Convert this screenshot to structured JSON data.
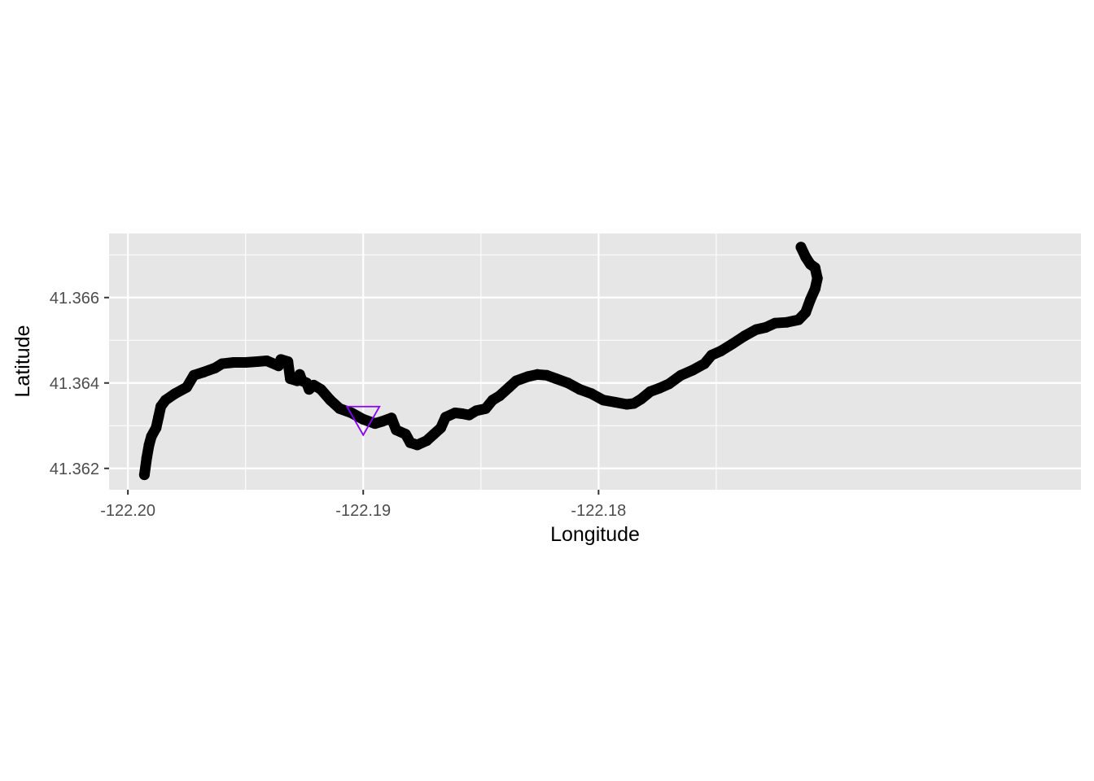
{
  "chart_data": {
    "type": "scatter",
    "title": "",
    "xlabel": "Longitude",
    "ylabel": "Latitude",
    "xlim": [
      -122.2008,
      -122.1595
    ],
    "ylim": [
      41.3615,
      41.3675
    ],
    "x_ticks": [
      -122.2,
      -122.19,
      -122.18
    ],
    "x_tick_labels": [
      "-122.20",
      "-122.19",
      "-122.18"
    ],
    "y_ticks": [
      41.362,
      41.364,
      41.366
    ],
    "y_tick_labels": [
      "41.362",
      "41.364",
      "41.366"
    ],
    "grid": true,
    "panel_background": "#e6e6e6",
    "series": [
      {
        "marker": "circle",
        "color": "#000000",
        "points": [
          [
            -122.1993,
            41.36185
          ],
          [
            -122.1992,
            41.36225
          ],
          [
            -122.1991,
            41.36255
          ],
          [
            -122.199,
            41.36275
          ],
          [
            -122.1988,
            41.36295
          ],
          [
            -122.1987,
            41.3632
          ],
          [
            -122.1986,
            41.36345
          ],
          [
            -122.1984,
            41.3636
          ],
          [
            -122.198,
            41.36375
          ],
          [
            -122.1975,
            41.3639
          ],
          [
            -122.1972,
            41.36418
          ],
          [
            -122.1968,
            41.36425
          ],
          [
            -122.1963,
            41.36435
          ],
          [
            -122.196,
            41.36445
          ],
          [
            -122.1955,
            41.36448
          ],
          [
            -122.195,
            41.36448
          ],
          [
            -122.1945,
            41.3645
          ],
          [
            -122.1941,
            41.36452
          ],
          [
            -122.1936,
            41.3644
          ],
          [
            -122.1935,
            41.36455
          ],
          [
            -122.1932,
            41.3645
          ],
          [
            -122.1931,
            41.3641
          ],
          [
            -122.1928,
            41.36405
          ],
          [
            -122.1927,
            41.3642
          ],
          [
            -122.1926,
            41.36405
          ],
          [
            -122.1924,
            41.364
          ],
          [
            -122.1923,
            41.36385
          ],
          [
            -122.1921,
            41.36395
          ],
          [
            -122.1918,
            41.36385
          ],
          [
            -122.1914,
            41.3636
          ],
          [
            -122.191,
            41.3634
          ],
          [
            -122.1905,
            41.3633
          ],
          [
            -122.19,
            41.36315
          ],
          [
            -122.1895,
            41.36305
          ],
          [
            -122.1892,
            41.3631
          ],
          [
            -122.1888,
            41.36318
          ],
          [
            -122.1886,
            41.3629
          ],
          [
            -122.1882,
            41.3628
          ],
          [
            -122.188,
            41.3626
          ],
          [
            -122.1877,
            41.36255
          ],
          [
            -122.1873,
            41.36265
          ],
          [
            -122.187,
            41.3628
          ],
          [
            -122.1867,
            41.36295
          ],
          [
            -122.1865,
            41.3632
          ],
          [
            -122.1861,
            41.3633
          ],
          [
            -122.1858,
            41.36328
          ],
          [
            -122.1855,
            41.36325
          ],
          [
            -122.1852,
            41.36335
          ],
          [
            -122.1848,
            41.3634
          ],
          [
            -122.1845,
            41.3636
          ],
          [
            -122.1842,
            41.3637
          ],
          [
            -122.1838,
            41.3639
          ],
          [
            -122.1835,
            41.36405
          ],
          [
            -122.183,
            41.36415
          ],
          [
            -122.1826,
            41.3642
          ],
          [
            -122.1822,
            41.36418
          ],
          [
            -122.1818,
            41.3641
          ],
          [
            -122.1813,
            41.364
          ],
          [
            -122.1808,
            41.36385
          ],
          [
            -122.1803,
            41.36375
          ],
          [
            -122.1798,
            41.3636
          ],
          [
            -122.1793,
            41.36355
          ],
          [
            -122.1788,
            41.3635
          ],
          [
            -122.1785,
            41.36352
          ],
          [
            -122.1782,
            41.36362
          ],
          [
            -122.1778,
            41.3638
          ],
          [
            -122.1774,
            41.36388
          ],
          [
            -122.177,
            41.36398
          ],
          [
            -122.1765,
            41.36418
          ],
          [
            -122.176,
            41.3643
          ],
          [
            -122.1755,
            41.36445
          ],
          [
            -122.1752,
            41.36465
          ],
          [
            -122.1748,
            41.36475
          ],
          [
            -122.1743,
            41.36492
          ],
          [
            -122.1738,
            41.3651
          ],
          [
            -122.1733,
            41.36525
          ],
          [
            -122.1729,
            41.3653
          ],
          [
            -122.1725,
            41.3654
          ],
          [
            -122.172,
            41.36542
          ],
          [
            -122.1715,
            41.36548
          ],
          [
            -122.1712,
            41.36565
          ],
          [
            -122.171,
            41.36595
          ],
          [
            -122.1708,
            41.3662
          ],
          [
            -122.1707,
            41.36645
          ],
          [
            -122.1708,
            41.3667
          ],
          [
            -122.171,
            41.36678
          ],
          [
            -122.1712,
            41.36695
          ],
          [
            -122.1714,
            41.36718
          ]
        ]
      }
    ],
    "annotations": [
      {
        "type": "point",
        "marker": "inverted-triangle",
        "color": "#8b00ff",
        "x": -122.19,
        "y": 41.3632
      }
    ]
  }
}
